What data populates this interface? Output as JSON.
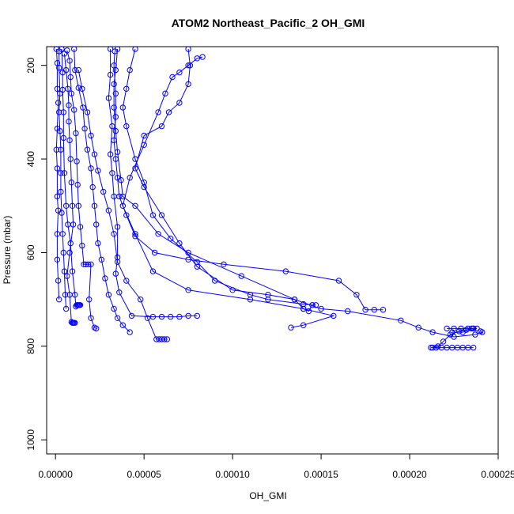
{
  "chart_data": {
    "type": "line",
    "title": "ATOM2 Northeast_Pacific_2 OH_GMI",
    "xlabel": "OH_GMI",
    "ylabel": "Pressure (mbar)",
    "xlim": [
      -5e-06,
      0.00025
    ],
    "ylim": [
      1030,
      160
    ],
    "y_reversed": true,
    "xticks": [
      0.0,
      5e-05,
      0.0001,
      0.00015,
      0.0002,
      0.00025
    ],
    "xtick_labels": [
      "0.00000",
      "0.00005",
      "0.00010",
      "0.00015",
      "0.00020",
      "0.00025"
    ],
    "yticks": [
      200,
      400,
      600,
      800,
      1000
    ],
    "ytick_labels": [
      "200",
      "400",
      "600",
      "800",
      "1000"
    ],
    "grid": false,
    "legend": "none",
    "color": "#0000ff",
    "series": [
      {
        "points": [
          [
            5e-07,
            165
          ],
          [
            1e-06,
            195
          ],
          [
            1e-06,
            250
          ],
          [
            1.5e-06,
            280
          ],
          [
            1e-06,
            335
          ],
          [
            5e-07,
            380
          ],
          [
            1e-06,
            420
          ],
          [
            1e-06,
            480
          ],
          [
            1.5e-06,
            510
          ],
          [
            1e-06,
            560
          ],
          [
            1e-06,
            615
          ],
          [
            1.5e-06,
            660
          ],
          [
            2e-06,
            700
          ]
        ]
      },
      {
        "points": [
          [
            2e-06,
            170
          ],
          [
            2e-06,
            205
          ],
          [
            2.5e-06,
            260
          ],
          [
            2e-06,
            300
          ],
          [
            2.5e-06,
            340
          ],
          [
            3e-06,
            380
          ],
          [
            3e-06,
            430
          ],
          [
            3e-06,
            470
          ],
          [
            3.5e-06,
            515
          ],
          [
            4e-06,
            560
          ],
          [
            4.5e-06,
            600
          ],
          [
            5e-06,
            640
          ],
          [
            5.5e-06,
            690
          ],
          [
            6e-06,
            720
          ]
        ]
      },
      {
        "points": [
          [
            3.5e-06,
            165
          ],
          [
            4e-06,
            215
          ],
          [
            4e-06,
            252
          ],
          [
            4.5e-06,
            300
          ],
          [
            4.5e-06,
            355
          ],
          [
            5e-06,
            430
          ],
          [
            6e-06,
            500
          ],
          [
            7e-06,
            540
          ],
          [
            8.5e-06,
            580
          ],
          [
            9.5e-06,
            640
          ],
          [
            1.1e-05,
            690
          ],
          [
            1.15e-05,
            715
          ],
          [
            1.2e-05,
            712
          ],
          [
            1.25e-05,
            712
          ],
          [
            1.3e-05,
            712
          ],
          [
            1.35e-05,
            712
          ],
          [
            1.4e-05,
            712
          ]
        ]
      },
      {
        "points": [
          [
            5e-06,
            175
          ],
          [
            6e-06,
            210
          ],
          [
            7e-06,
            250
          ],
          [
            7.5e-06,
            285
          ],
          [
            7.5e-06,
            320
          ],
          [
            8e-06,
            360
          ],
          [
            8.5e-06,
            400
          ],
          [
            9e-06,
            450
          ],
          [
            9.5e-06,
            500
          ],
          [
            1e-05,
            540
          ],
          [
            8e-06,
            600
          ],
          [
            6.5e-06,
            650
          ],
          [
            8e-06,
            690
          ],
          [
            9e-06,
            748
          ],
          [
            9.5e-06,
            750
          ],
          [
            1e-05,
            750
          ],
          [
            1.05e-05,
            750
          ],
          [
            1.1e-05,
            750
          ]
        ]
      },
      {
        "points": [
          [
            6.5e-06,
            168
          ],
          [
            8e-06,
            190
          ],
          [
            8.5e-06,
            225
          ],
          [
            9e-06,
            260
          ],
          [
            1.05e-05,
            295
          ],
          [
            1.15e-05,
            345
          ],
          [
            1.2e-05,
            405
          ],
          [
            1.25e-05,
            455
          ],
          [
            1.3e-05,
            500
          ],
          [
            1.4e-05,
            545
          ],
          [
            1.5e-05,
            585
          ],
          [
            1.6e-05,
            625
          ],
          [
            1.7e-05,
            625
          ],
          [
            1.85e-05,
            625
          ],
          [
            2e-05,
            625
          ],
          [
            1.9e-05,
            700
          ],
          [
            2e-05,
            740
          ],
          [
            2.2e-05,
            760
          ],
          [
            2.3e-05,
            762
          ]
        ]
      },
      {
        "points": [
          [
            1.05e-05,
            165
          ],
          [
            1.1e-05,
            210
          ],
          [
            1.3e-05,
            248
          ],
          [
            1.55e-05,
            290
          ],
          [
            1.65e-05,
            335
          ],
          [
            1.8e-05,
            380
          ],
          [
            2e-05,
            420
          ],
          [
            2.1e-05,
            460
          ],
          [
            2.2e-05,
            500
          ],
          [
            2.3e-05,
            540
          ],
          [
            2.4e-05,
            580
          ],
          [
            2.6e-05,
            615
          ],
          [
            2.8e-05,
            655
          ],
          [
            3e-05,
            690
          ],
          [
            3.3e-05,
            720
          ],
          [
            3.5e-05,
            740
          ],
          [
            3.8e-05,
            755
          ],
          [
            4.2e-05,
            770
          ]
        ]
      },
      {
        "points": [
          [
            1.3e-05,
            210
          ],
          [
            1.5e-05,
            250
          ],
          [
            1.8e-05,
            300
          ],
          [
            2e-05,
            350
          ],
          [
            2.2e-05,
            390
          ],
          [
            2.4e-05,
            425
          ],
          [
            2.7e-05,
            470
          ],
          [
            3e-05,
            510
          ],
          [
            3.3e-05,
            560
          ],
          [
            3.5e-05,
            620
          ],
          [
            4e-05,
            660
          ],
          [
            4.8e-05,
            700
          ],
          [
            5.2e-05,
            740
          ],
          [
            5.7e-05,
            785
          ],
          [
            5.85e-05,
            785
          ],
          [
            6e-05,
            785
          ],
          [
            6.15e-05,
            785
          ],
          [
            6.3e-05,
            785
          ]
        ]
      },
      {
        "points": [
          [
            3.1e-05,
            165
          ],
          [
            3.1e-05,
            220
          ],
          [
            3e-05,
            270
          ],
          [
            3.2e-05,
            330
          ],
          [
            3.1e-05,
            390
          ],
          [
            3.2e-05,
            430
          ],
          [
            3.3e-05,
            480
          ],
          [
            3.5e-05,
            545
          ],
          [
            3.5e-05,
            610
          ],
          [
            3.4e-05,
            645
          ],
          [
            3.6e-05,
            685
          ],
          [
            4.3e-05,
            735
          ],
          [
            5.5e-05,
            737
          ],
          [
            6e-05,
            737
          ],
          [
            6.5e-05,
            737
          ],
          [
            7e-05,
            737
          ],
          [
            7.5e-05,
            735
          ],
          [
            8e-05,
            735
          ]
        ]
      },
      {
        "points": [
          [
            3.35e-05,
            170
          ],
          [
            3.3e-05,
            200
          ],
          [
            3.4e-05,
            260
          ],
          [
            3.4e-05,
            310
          ],
          [
            3.3e-05,
            360
          ],
          [
            3.4e-05,
            400
          ],
          [
            3.5e-05,
            440
          ],
          [
            3.6e-05,
            480
          ],
          [
            4e-05,
            520
          ],
          [
            4.5e-05,
            565
          ],
          [
            5.6e-05,
            600
          ],
          [
            7.5e-05,
            615
          ],
          [
            9.5e-05,
            625
          ],
          [
            0.00013,
            640
          ],
          [
            0.00016,
            660
          ],
          [
            0.00017,
            690
          ],
          [
            0.000175,
            722
          ],
          [
            0.00018,
            722
          ],
          [
            0.000185,
            722
          ]
        ]
      },
      {
        "points": [
          [
            3.5e-05,
            165
          ],
          [
            3.4e-05,
            210
          ],
          [
            3.3e-05,
            240
          ],
          [
            3.3e-05,
            290
          ],
          [
            3.4e-05,
            340
          ],
          [
            3.5e-05,
            385
          ],
          [
            3.7e-05,
            445
          ],
          [
            3.8e-05,
            480
          ],
          [
            4.5e-05,
            500
          ],
          [
            5.8e-05,
            560
          ],
          [
            7.5e-05,
            600
          ],
          [
            0.000105,
            650
          ],
          [
            0.000135,
            700
          ],
          [
            0.00015,
            720
          ],
          [
            0.000165,
            725
          ],
          [
            0.000195,
            745
          ],
          [
            0.000205,
            760
          ],
          [
            0.000213,
            770
          ],
          [
            0.000225,
            780
          ],
          [
            0.000237,
            775
          ],
          [
            0.000241,
            770
          ],
          [
            0.00024,
            768
          ]
        ]
      },
      {
        "points": [
          [
            4.5e-05,
            165
          ],
          [
            4.2e-05,
            210
          ],
          [
            4e-05,
            250
          ],
          [
            3.8e-05,
            290
          ],
          [
            4e-05,
            330
          ],
          [
            4.5e-05,
            400
          ],
          [
            5e-05,
            450
          ],
          [
            5.5e-05,
            520
          ],
          [
            6.5e-05,
            570
          ],
          [
            8e-05,
            620
          ],
          [
            9e-05,
            660
          ],
          [
            0.00011,
            690
          ],
          [
            0.00012,
            700
          ],
          [
            0.00014,
            710
          ],
          [
            0.000145,
            712
          ],
          [
            0.000147,
            712
          ]
        ]
      },
      {
        "points": [
          [
            7.5e-05,
            165
          ],
          [
            7.6e-05,
            200
          ],
          [
            7.5e-05,
            240
          ],
          [
            7e-05,
            280
          ],
          [
            6.4e-05,
            300
          ],
          [
            6e-05,
            330
          ],
          [
            5e-05,
            350
          ],
          [
            4.5e-05,
            420
          ],
          [
            5e-05,
            460
          ],
          [
            6e-05,
            520
          ],
          [
            7e-05,
            580
          ],
          [
            8e-05,
            630
          ],
          [
            0.0001,
            680
          ],
          [
            0.00012,
            690
          ],
          [
            0.000135,
            700
          ],
          [
            0.00014,
            720
          ],
          [
            0.000143,
            725
          ],
          [
            0.000145,
            712
          ]
        ]
      },
      {
        "points": [
          [
            8.3e-05,
            182
          ],
          [
            8e-05,
            185
          ],
          [
            7.5e-05,
            200
          ],
          [
            7e-05,
            215
          ],
          [
            6.6e-05,
            225
          ],
          [
            6.2e-05,
            260
          ],
          [
            5.8e-05,
            300
          ],
          [
            5e-05,
            370
          ],
          [
            4.2e-05,
            440
          ],
          [
            3.8e-05,
            500
          ],
          [
            4.5e-05,
            560
          ],
          [
            5.5e-05,
            640
          ],
          [
            7.5e-05,
            680
          ],
          [
            0.00011,
            700
          ],
          [
            0.00014,
            720
          ],
          [
            0.000157,
            735
          ],
          [
            0.00014,
            755
          ],
          [
            0.000133,
            760
          ]
        ]
      },
      {
        "points": [
          [
            0.000212,
            803
          ],
          [
            0.000215,
            803
          ],
          [
            0.000218,
            803
          ],
          [
            0.000221,
            803
          ],
          [
            0.000224,
            803
          ],
          [
            0.000227,
            803
          ],
          [
            0.00023,
            803
          ],
          [
            0.000233,
            803
          ],
          [
            0.000236,
            803
          ]
        ]
      },
      {
        "points": [
          [
            0.000221,
            762
          ],
          [
            0.000225,
            762
          ],
          [
            0.000229,
            762
          ],
          [
            0.000233,
            762
          ],
          [
            0.000236,
            762
          ],
          [
            0.000238,
            762
          ],
          [
            0.00023,
            770
          ],
          [
            0.000224,
            770
          ]
        ]
      },
      {
        "points": [
          [
            0.000213,
            803
          ],
          [
            0.000216,
            800
          ],
          [
            0.000219,
            790
          ],
          [
            0.000223,
            775
          ],
          [
            0.000228,
            768
          ],
          [
            0.000232,
            765
          ],
          [
            0.000235,
            762
          ],
          [
            0.000236,
            762
          ]
        ]
      }
    ]
  }
}
